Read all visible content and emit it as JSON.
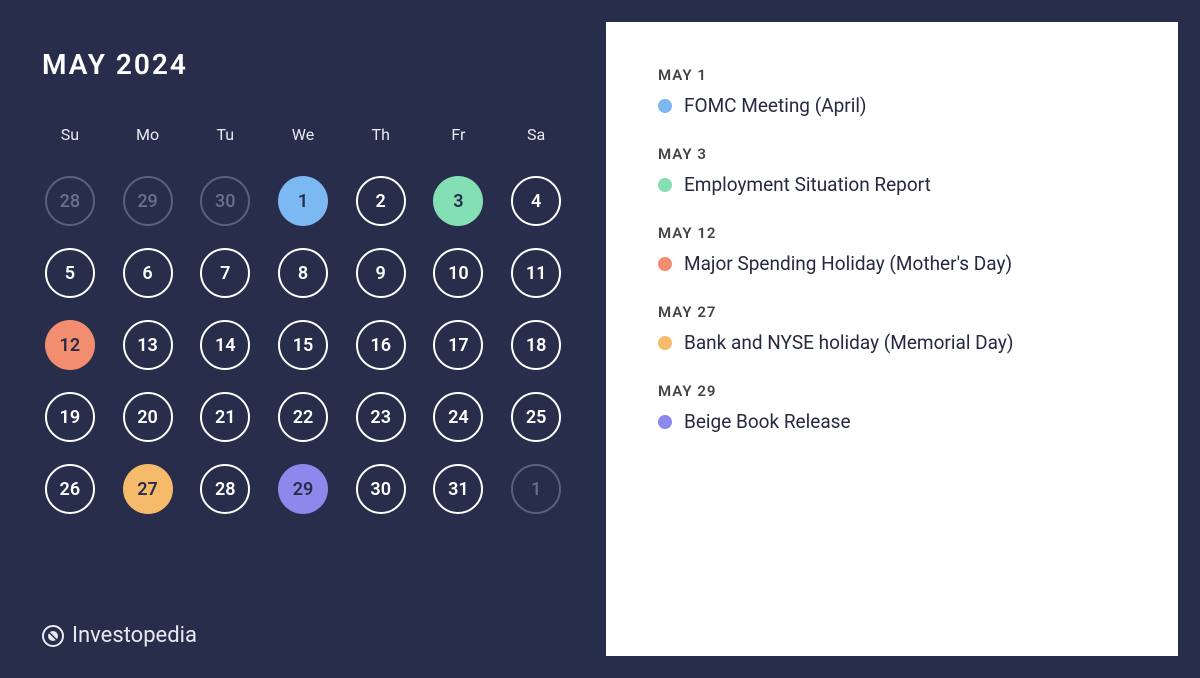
{
  "title": "MAY 2024",
  "brand": "Investopedia",
  "background_color": "#272d4a",
  "panel_color": "#ffffff",
  "day_border_color": "#ffffff",
  "out_month_color": "#5a607d",
  "dow": [
    "Su",
    "Mo",
    "Tu",
    "We",
    "Th",
    "Fr",
    "Sa"
  ],
  "days": [
    {
      "n": "28",
      "out": true
    },
    {
      "n": "29",
      "out": true
    },
    {
      "n": "30",
      "out": true
    },
    {
      "n": "1",
      "event": true,
      "color": "#7cb8f2"
    },
    {
      "n": "2"
    },
    {
      "n": "3",
      "event": true,
      "color": "#85dfb4"
    },
    {
      "n": "4"
    },
    {
      "n": "5"
    },
    {
      "n": "6"
    },
    {
      "n": "7"
    },
    {
      "n": "8"
    },
    {
      "n": "9"
    },
    {
      "n": "10"
    },
    {
      "n": "11"
    },
    {
      "n": "12",
      "event": true,
      "color": "#f38d70"
    },
    {
      "n": "13"
    },
    {
      "n": "14"
    },
    {
      "n": "15"
    },
    {
      "n": "16"
    },
    {
      "n": "17"
    },
    {
      "n": "18"
    },
    {
      "n": "19"
    },
    {
      "n": "20"
    },
    {
      "n": "21"
    },
    {
      "n": "22"
    },
    {
      "n": "23"
    },
    {
      "n": "24"
    },
    {
      "n": "25"
    },
    {
      "n": "26"
    },
    {
      "n": "27",
      "event": true,
      "color": "#f6bb6a"
    },
    {
      "n": "28"
    },
    {
      "n": "29",
      "event": true,
      "color": "#8d89ec"
    },
    {
      "n": "30"
    },
    {
      "n": "31"
    },
    {
      "n": "1",
      "out": true
    }
  ],
  "events": [
    {
      "date": "MAY 1",
      "label": "FOMC Meeting (April)",
      "color": "#7cb8f2"
    },
    {
      "date": "MAY 3",
      "label": "Employment Situation Report",
      "color": "#85dfb4"
    },
    {
      "date": "MAY 12",
      "label": "Major Spending Holiday (Mother's Day)",
      "color": "#f38d70"
    },
    {
      "date": "MAY 27",
      "label": "Bank and NYSE holiday (Memorial Day)",
      "color": "#f6bb6a"
    },
    {
      "date": "MAY 29",
      "label": "Beige Book Release",
      "color": "#8d89ec"
    }
  ]
}
